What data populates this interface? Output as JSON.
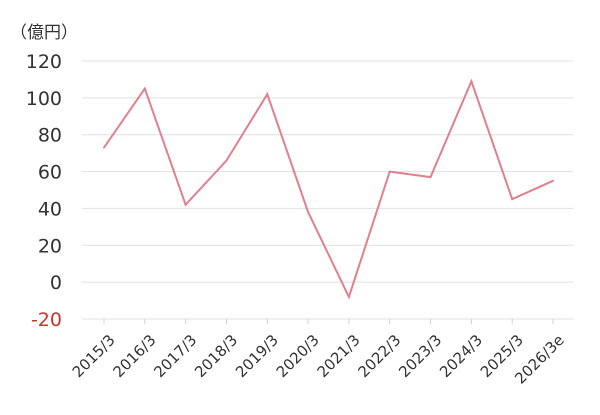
{
  "chart_data": {
    "type": "line",
    "unit_label": "（億円）",
    "title": "",
    "xlabel": "",
    "ylabel": "",
    "ylim": [
      -20,
      120
    ],
    "yticks": [
      -20,
      0,
      20,
      40,
      60,
      80,
      100,
      120
    ],
    "grid": true,
    "categories": [
      "2015/3",
      "2016/3",
      "2017/3",
      "2018/3",
      "2019/3",
      "2020/3",
      "2021/3",
      "2022/3",
      "2023/3",
      "2024/3",
      "2025/3",
      "2026/3e"
    ],
    "series": [
      {
        "values": [
          73,
          105,
          42,
          66,
          102,
          38,
          -8,
          60,
          57,
          109,
          45,
          55
        ]
      }
    ],
    "colors": {
      "line": "#e0808f",
      "grid": "#e0e0e0",
      "axis_text": "#333333",
      "negative_tick": "#c0392b"
    }
  }
}
